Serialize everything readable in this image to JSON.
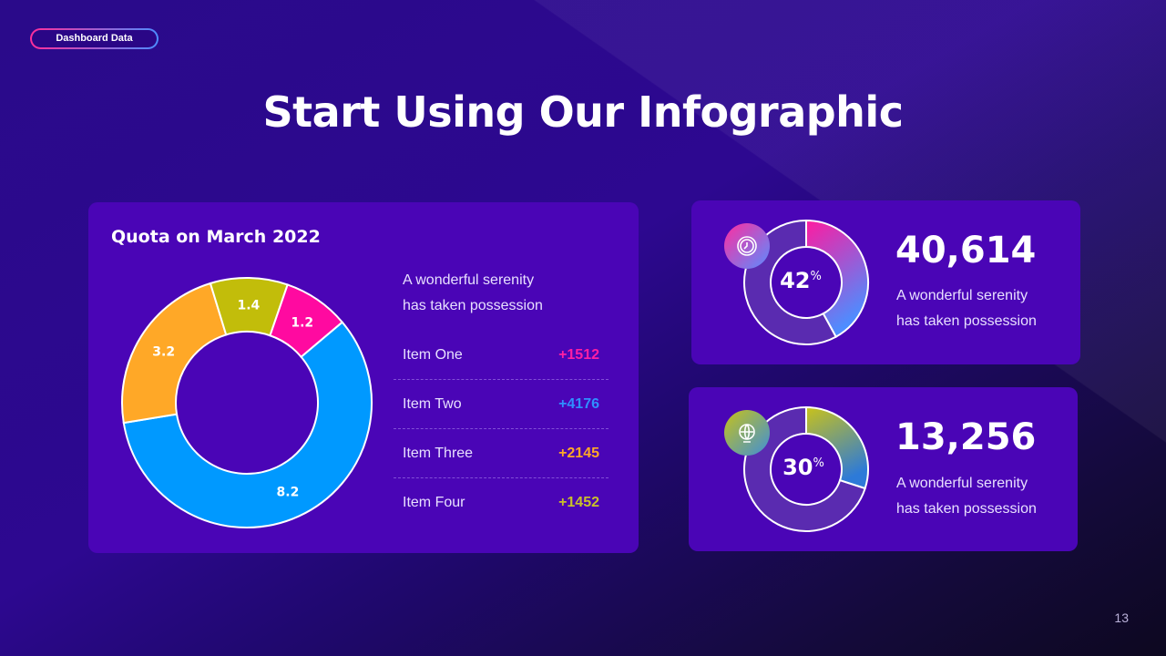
{
  "badge": "Dashboard Data",
  "title": "Start Using Our Infographic",
  "page_number": "13",
  "chart_data": {
    "type": "pie",
    "title": "Quota on March 2022",
    "categories": [
      "1.2",
      "8.2",
      "3.2",
      "1.4"
    ],
    "values": [
      1.2,
      8.2,
      3.2,
      1.4
    ],
    "colors": [
      "#ff0aa0",
      "#0099ff",
      "#ffa827",
      "#c2bd0a"
    ],
    "donut": true
  },
  "quota": {
    "description_line1": "A wonderful serenity",
    "description_line2": "has taken possession",
    "items": [
      {
        "label": "Item One",
        "value": "+1512",
        "color": "#ff1fa3"
      },
      {
        "label": "Item Two",
        "value": "+4176",
        "color": "#2f8fff"
      },
      {
        "label": "Item Three",
        "value": "+2145",
        "color": "#ffa827"
      },
      {
        "label": "Item Four",
        "value": "+1452",
        "color": "#c9c02a"
      }
    ]
  },
  "stats": [
    {
      "percent": 42,
      "percent_label": "42",
      "percent_sign": "%",
      "number": "40,614",
      "line1": "A wonderful serenity",
      "line2": "has taken possession",
      "icon": "clock-icon"
    },
    {
      "percent": 30,
      "percent_label": "30",
      "percent_sign": "%",
      "number": "13,256",
      "line1": "A wonderful serenity",
      "line2": "has taken possession",
      "icon": "globe-icon"
    }
  ]
}
